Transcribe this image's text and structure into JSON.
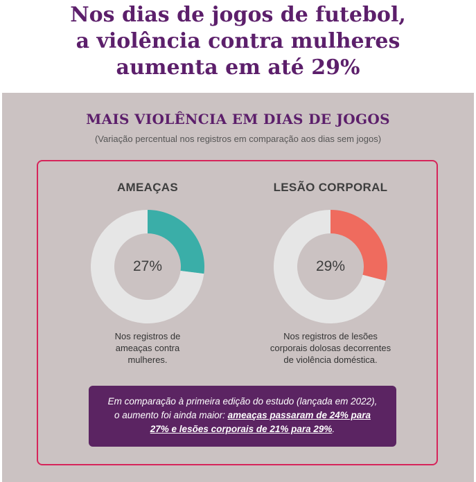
{
  "headline": {
    "line1": "Nos dias de jogos de futebol,",
    "line2": "a violência contra mulheres",
    "line3": "aumenta em até 29%"
  },
  "section": {
    "title": "MAIS VIOLÊNCIA EM DIAS DE JOGOS",
    "subtitle": "(Variação percentual nos registros em comparação aos dias sem jogos)"
  },
  "chart_data": [
    {
      "type": "pie",
      "title": "AMEAÇAS",
      "categories": [
        "AMEAÇAS",
        ""
      ],
      "values": [
        27,
        73
      ],
      "value_label": "27%",
      "caption": [
        "Nos registros de",
        "ameaças contra",
        "mulheres."
      ],
      "colors": [
        "#3aaea8",
        "#e6e6e6"
      ]
    },
    {
      "type": "pie",
      "title": "LESÃO CORPORAL",
      "categories": [
        "LESÃO CORPORAL",
        ""
      ],
      "values": [
        29,
        71
      ],
      "value_label": "29%",
      "caption": [
        "Nos registros de lesões",
        "corporais dolosas decorrentes",
        "de violência doméstica."
      ],
      "colors": [
        "#ef6b5e",
        "#e6e6e6"
      ]
    }
  ],
  "note": {
    "text1": "Em comparação à primeira edição do estudo (lançada em 2022),",
    "text2": "o aumento foi ainda maior: ",
    "highlight1": "ameaças passaram de 24% para",
    "highlight2": "27% e lesões corporais de 21% para 29%",
    "end": "."
  },
  "colors": {
    "brand_purple": "#5c1f6b",
    "panel_bg": "#cbc2c2",
    "card_border": "#d6245a",
    "note_bg": "#5b2462"
  }
}
